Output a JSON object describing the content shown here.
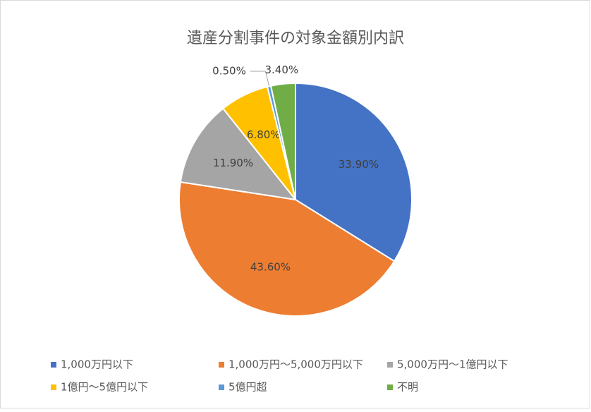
{
  "chart_data": {
    "type": "pie",
    "title": "遺産分割事件の対象金額別内訳",
    "categories": [
      "1,000万円以下",
      "1,000万円～5,000万円以下",
      "5,000万円～1億円以下",
      "1億円～5億円以下",
      "5億円超",
      "不明"
    ],
    "values": [
      33.9,
      43.6,
      11.9,
      6.8,
      0.5,
      3.4
    ],
    "value_labels": [
      "33.90%",
      "43.60%",
      "11.90%",
      "6.80%",
      "0.50%",
      "3.40%"
    ],
    "colors": [
      "#4472c4",
      "#ed7d31",
      "#a5a5a5",
      "#ffc000",
      "#5b9bd5",
      "#70ad47"
    ],
    "legend": "bottom"
  }
}
